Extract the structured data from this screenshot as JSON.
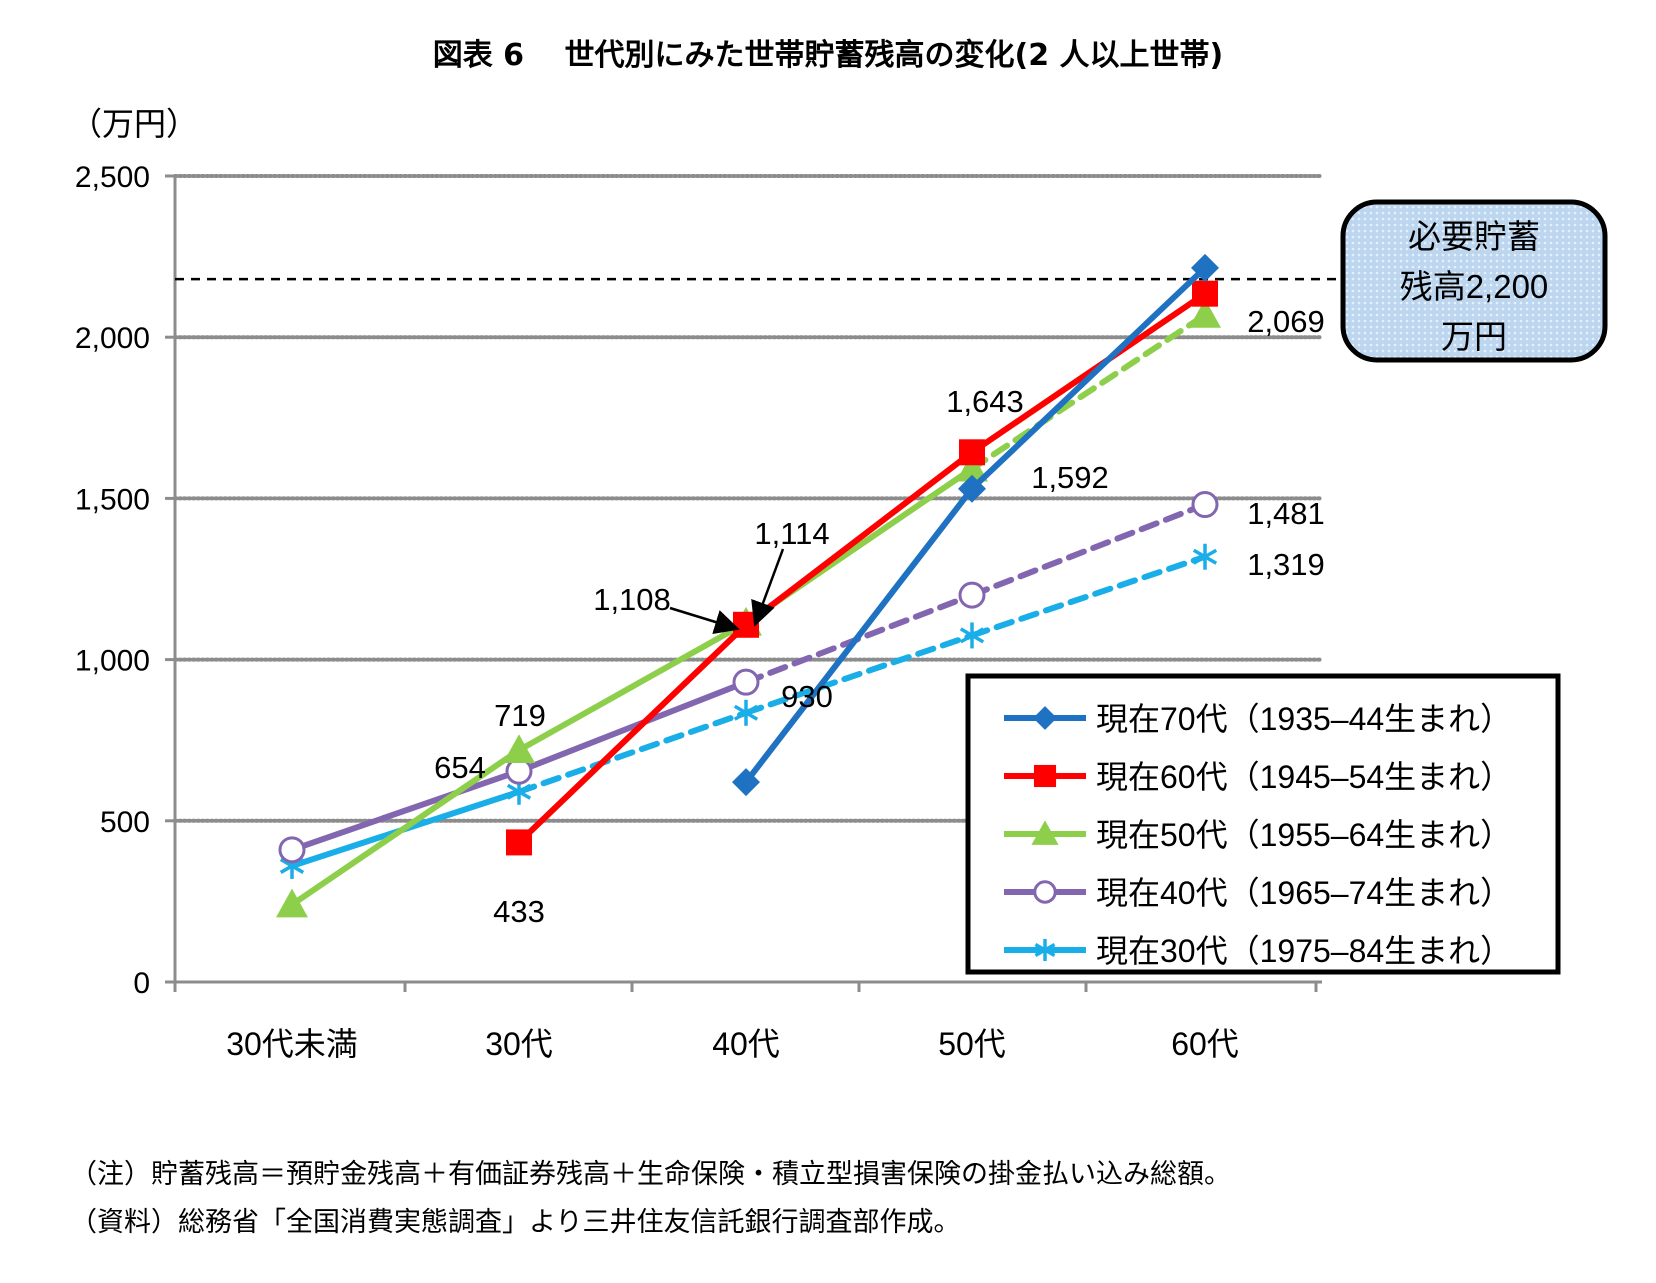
{
  "chart_data": {
    "type": "line",
    "title": "図表 6　 世代別にみた世帯貯蓄残高の変化(2 人以上世帯)",
    "ylabel": "（万円）",
    "xlabel": "",
    "ylim": [
      0,
      2500
    ],
    "yticks": [
      0,
      500,
      1000,
      1500,
      2000,
      2500
    ],
    "ytick_labels": [
      "0",
      "500",
      "1,000",
      "1,500",
      "2,000",
      "2,500"
    ],
    "categories": [
      "30代未満",
      "30代",
      "40代",
      "50代",
      "60代"
    ],
    "grid": true,
    "legend_position": "bottom-right",
    "series": [
      {
        "name": "現在70代（1935–44生まれ）",
        "color": "#1F72C2",
        "marker": "diamond",
        "values": [
          null,
          null,
          620,
          1530,
          2215
        ],
        "dashed_from": null
      },
      {
        "name": "現在60代（1945–54生まれ）",
        "color": "#FF0000",
        "marker": "square",
        "values": [
          null,
          433,
          1108,
          1643,
          2135
        ],
        "dashed_from": null
      },
      {
        "name": "現在50代（1955–64生まれ）",
        "color": "#8DCF4A",
        "marker": "triangle",
        "values": [
          240,
          719,
          1114,
          1592,
          2069
        ],
        "dashed_from": 3
      },
      {
        "name": "現在40代（1965–74生まれ）",
        "color": "#8366B0",
        "marker": "circle",
        "values": [
          410,
          654,
          930,
          1200,
          1481
        ],
        "dashed_from": 2
      },
      {
        "name": "現在30代（1975–84生まれ）",
        "color": "#1AAEE8",
        "marker": "asterisk",
        "values": [
          360,
          590,
          835,
          1075,
          1319
        ],
        "dashed_from": 1
      }
    ],
    "data_labels": [
      {
        "text": "433",
        "series": 1,
        "point": 1
      },
      {
        "text": "1,108",
        "series": 1,
        "point": 2
      },
      {
        "text": "1,643",
        "series": 1,
        "point": 3
      },
      {
        "text": "719",
        "series": 2,
        "point": 1
      },
      {
        "text": "1,114",
        "series": 2,
        "point": 2
      },
      {
        "text": "1,592",
        "series": 2,
        "point": 3
      },
      {
        "text": "2,069",
        "series": 2,
        "point": 4
      },
      {
        "text": "654",
        "series": 3,
        "point": 1
      },
      {
        "text": "930",
        "series": 3,
        "point": 2
      },
      {
        "text": "1,481",
        "series": 3,
        "point": 4
      },
      {
        "text": "1,319",
        "series": 4,
        "point": 4
      }
    ],
    "reference_line": {
      "value": 2180,
      "style": "dashed",
      "color": "#000000"
    },
    "callout": {
      "lines": [
        "必要貯蓄",
        "残高2,200",
        "万円"
      ]
    }
  },
  "notes": {
    "line1": "（注）貯蓄残高＝預貯金残高＋有価証券残高＋生命保険・積立型損害保険の掛金払い込み総額。",
    "line2": "（資料）総務省「全国消費実態調査」より三井住友信託銀行調査部作成。"
  }
}
